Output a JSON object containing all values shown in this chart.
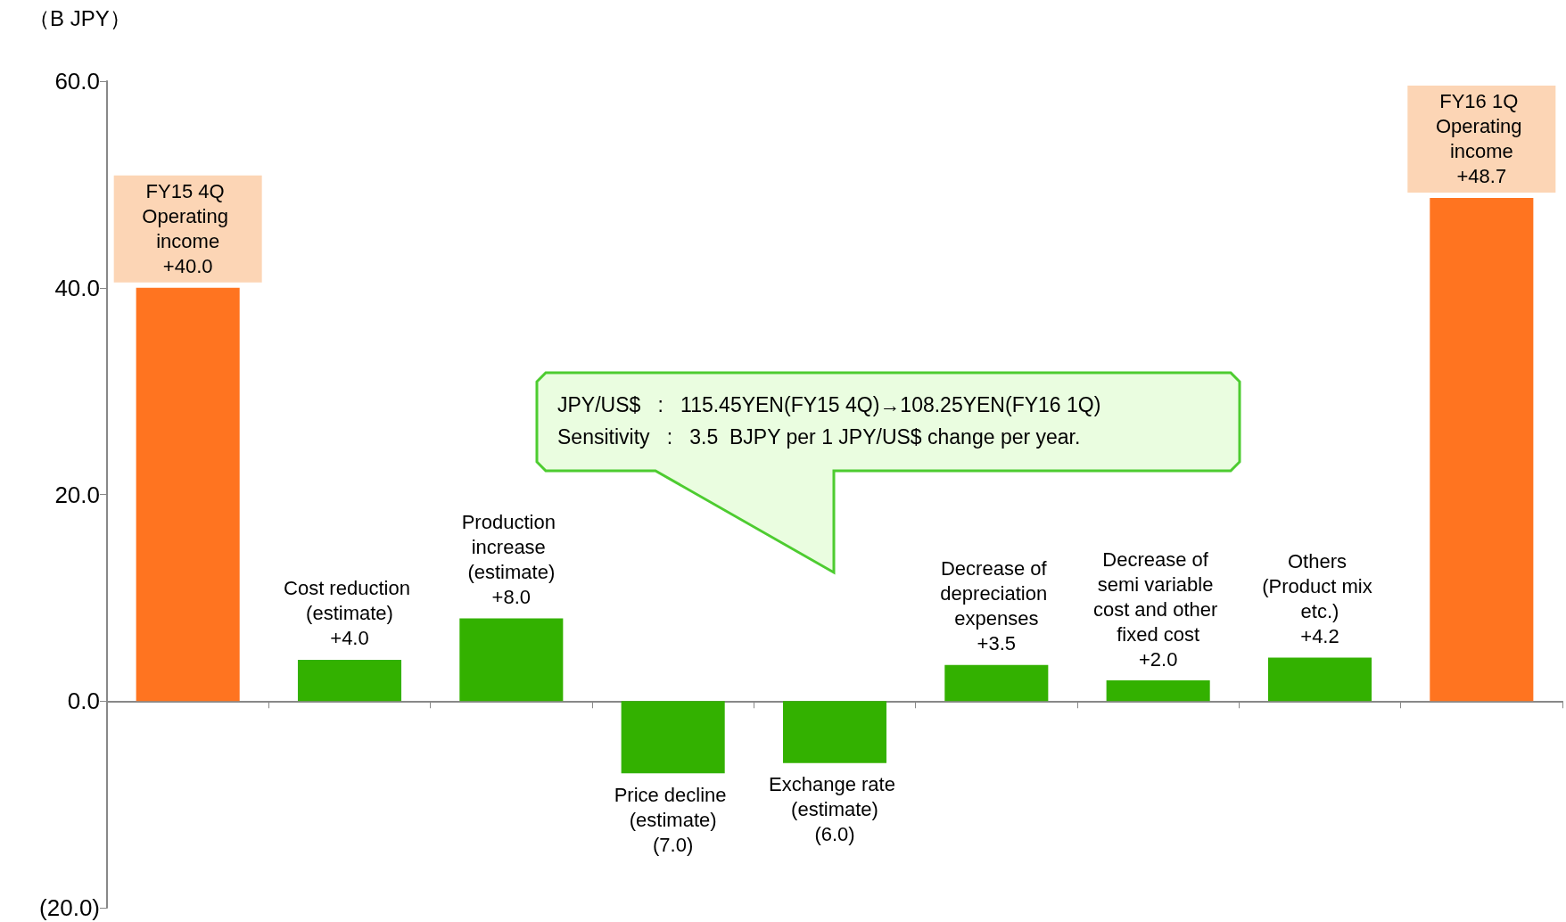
{
  "chart_data": {
    "type": "bar",
    "ylabel": "（B JPY）",
    "categories": [
      "FY15 4Q Operating income",
      "Cost reduction (estimate)",
      "Production increase (estimate)",
      "Price decline (estimate)",
      "Exchange rate (estimate)",
      "Decrease of depreciation expenses",
      "Decrease of semi variable cost and other fixed cost",
      "Others (Product mix etc.)",
      "FY16 1Q Operating income"
    ],
    "values": [
      40.0,
      4.0,
      8.0,
      -7.0,
      -6.0,
      3.5,
      2.0,
      4.2,
      48.7
    ],
    "value_labels": [
      "+40.0",
      "+4.0",
      "+8.0",
      "(7.0)",
      "(6.0)",
      "+3.5",
      "+2.0",
      "+4.2",
      "+48.7"
    ],
    "colors": [
      "#ff7420",
      "#33b100",
      "#33b100",
      "#33b100",
      "#33b100",
      "#33b100",
      "#33b100",
      "#33b100",
      "#ff7420"
    ],
    "ylim": [
      -20,
      60
    ],
    "yticks": [
      {
        "value": -20,
        "label": "(20.0)"
      },
      {
        "value": 0,
        "label": "0.0"
      },
      {
        "value": 20,
        "label": "20.0"
      },
      {
        "value": 40,
        "label": "40.0"
      },
      {
        "value": 60,
        "label": "60.0"
      }
    ],
    "tick_labels": "y",
    "annotations": [
      "JPY/US$   :   115.45YEN(FY15 4Q)→108.25YEN(FY16 1Q)",
      "Sensitivity   :   3.5  BJPY per 1 JPY/US$ change per year."
    ]
  }
}
